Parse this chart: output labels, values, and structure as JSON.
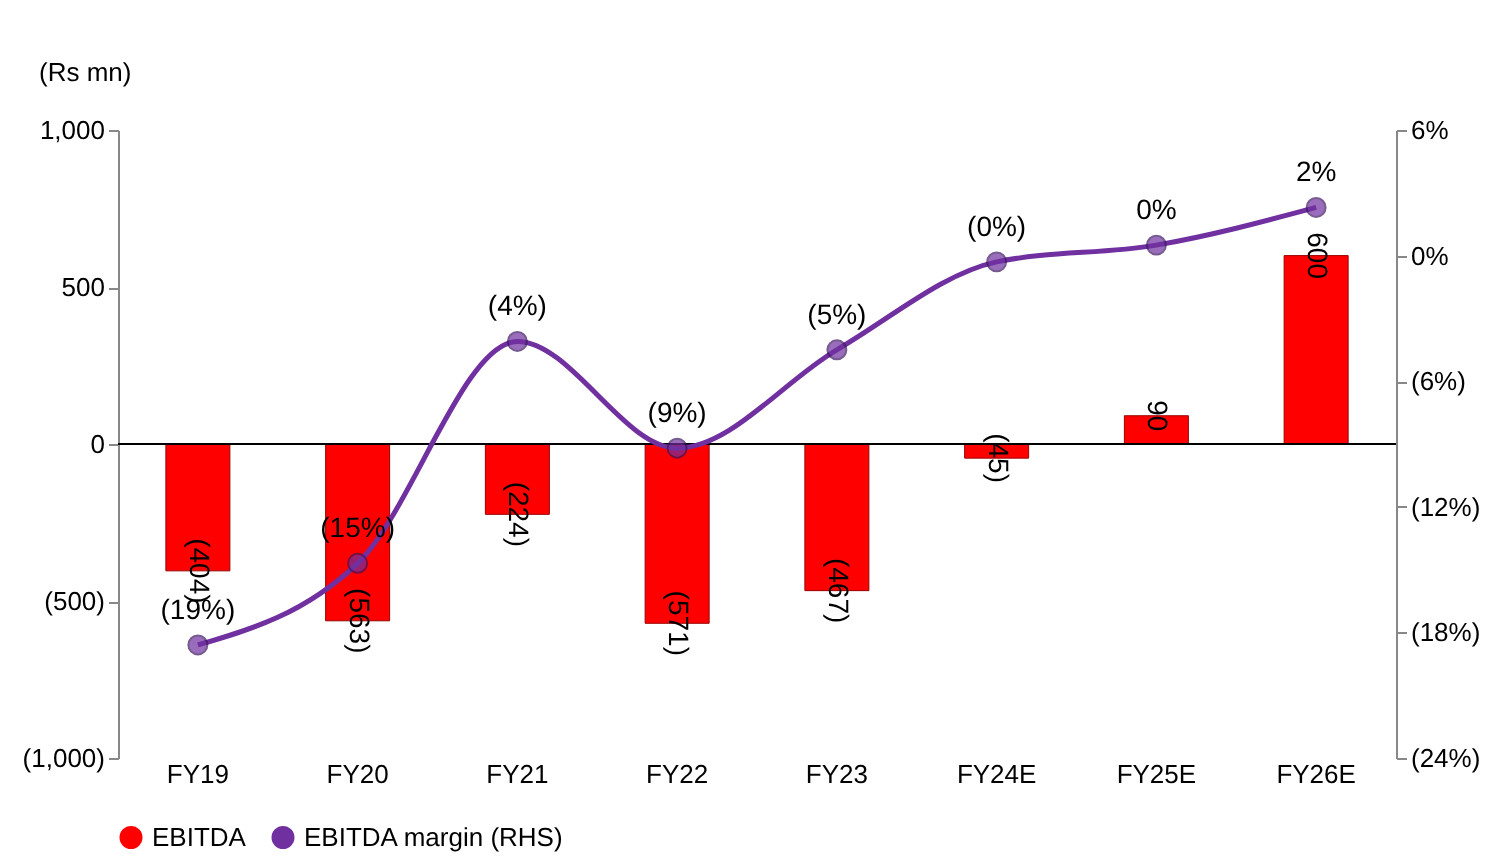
{
  "chart_data": {
    "type": "bar",
    "ylabel": "(Rs mn)",
    "categories": [
      "FY19",
      "FY20",
      "FY21",
      "FY22",
      "FY23",
      "FY24E",
      "FY25E",
      "FY26E"
    ],
    "series": [
      {
        "name": "EBITDA",
        "color": "#ff0000",
        "values": [
          -404,
          -563,
          -224,
          -571,
          -467,
          -45,
          90,
          600
        ],
        "value_labels": [
          "(404)",
          "(563)",
          "(224)",
          "(571)",
          "(467)",
          "(45)",
          "90",
          "600"
        ]
      },
      {
        "name": "EBITDA margin (RHS)",
        "type": "line",
        "axis": "y2",
        "color": "#7030a0",
        "values": [
          -18.6,
          -14.7,
          -4.1,
          -9.2,
          -4.5,
          -0.3,
          0.5,
          2.3
        ],
        "value_labels": [
          "(19%)",
          "(15%)",
          "(4%)",
          "(9%)",
          "(5%)",
          "(0%)",
          "0%",
          "2%"
        ]
      }
    ],
    "ylim": [
      -1000,
      1000
    ],
    "yticks": [
      {
        "value": -1000,
        "label": "(1,000)"
      },
      {
        "value": -500,
        "label": "(500)"
      },
      0,
      500,
      {
        "value": 1000,
        "label": "1,000"
      }
    ],
    "y2lim": [
      -24,
      6
    ],
    "y2ticks": [
      {
        "value": -24,
        "label": "(24%)"
      },
      {
        "value": -18,
        "label": "(18%)"
      },
      {
        "value": -12,
        "label": "(12%)"
      },
      {
        "value": -6,
        "label": "(6%)"
      },
      {
        "value": 0,
        "label": "0%"
      },
      {
        "value": 6,
        "label": "6%"
      }
    ],
    "ref_lines": [
      {
        "axis": "y",
        "value": 0,
        "color": "#000000"
      }
    ],
    "marker": "circle",
    "line_style": "solid",
    "grid": false,
    "legend": "bottom"
  }
}
